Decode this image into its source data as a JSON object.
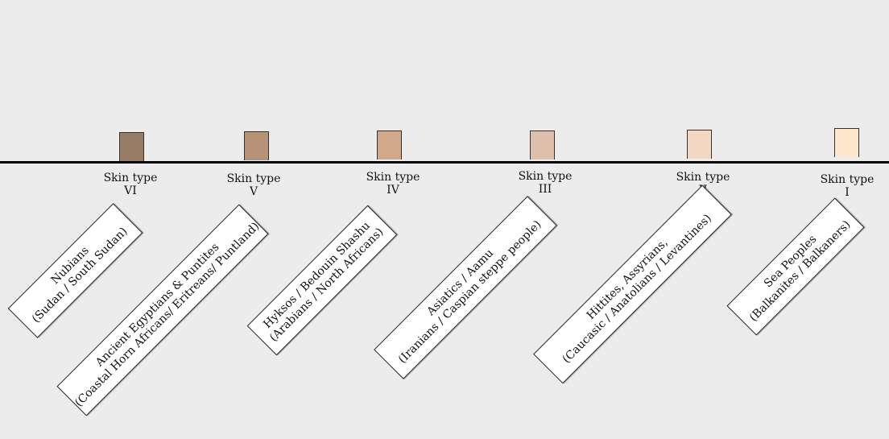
{
  "skin_types": [
    {
      "label_line1": "Skin type",
      "label_line2": "VI",
      "color": "#987b65",
      "group_line1": "Nubians",
      "group_line2": "(Sudan / South Sudan)"
    },
    {
      "label_line1": "Skin type",
      "label_line2": "V",
      "color": "#b79276",
      "group_line1": "Ancient Egyptians & Puntites",
      "group_line2": "(Coastal Horn Africans/ Eritreans/ Puntland)"
    },
    {
      "label_line1": "Skin type",
      "label_line2": "IV",
      "color": "#d2a88b",
      "group_line1": "Hyksos / Bedouin Shashu",
      "group_line2": "(Arabians / North Africans)"
    },
    {
      "label_line1": "Skin type",
      "label_line2": "III",
      "color": "#debfa9",
      "group_line1": "Asiatics / Aamu",
      "group_line2": "(Iranians / Caspian steppe people)"
    },
    {
      "label_line1": "Skin type",
      "label_line2": "II",
      "color": "#f2d8c3",
      "group_line1": "Hittites, Assyrians,",
      "group_line2": "(Caucasic / Anatolians / Levantines)"
    },
    {
      "label_line1": "Skin type",
      "label_line2": "I",
      "color": "#fde6cc",
      "group_line1": "Sea Peoples",
      "group_line2": "(Balkanites / Balkaners)"
    }
  ]
}
